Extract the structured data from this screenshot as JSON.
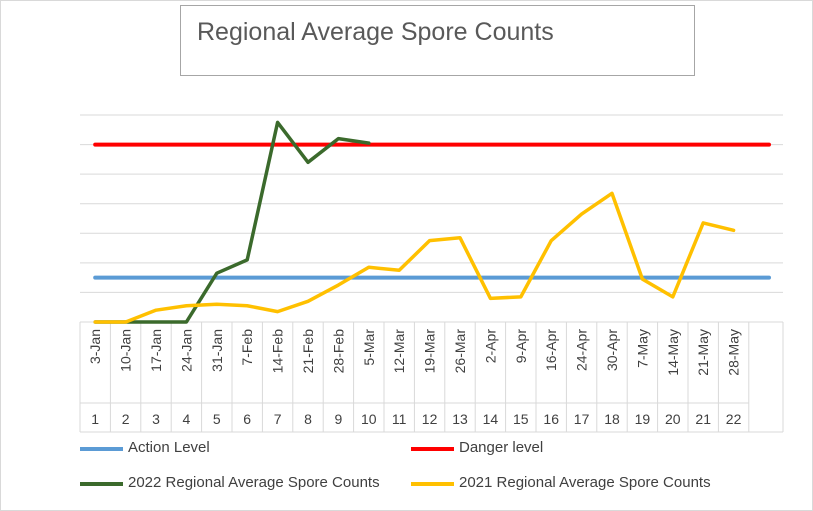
{
  "chart_data": {
    "type": "line",
    "title": "Regional Average Spore Counts",
    "xlabel": "",
    "ylabel": "",
    "grid": true,
    "legend_position": "bottom",
    "x_index": [
      "1",
      "2",
      "3",
      "4",
      "5",
      "6",
      "7",
      "8",
      "9",
      "10",
      "11",
      "12",
      "13",
      "14",
      "15",
      "16",
      "17",
      "18",
      "19",
      "20",
      "21",
      "22"
    ],
    "x_dates": [
      "3-Jan",
      "10-Jan",
      "17-Jan",
      "24-Jan",
      "31-Jan",
      "7-Feb",
      "14-Feb",
      "21-Feb",
      "28-Feb",
      "5-Mar",
      "12-Mar",
      "19-Mar",
      "26-Mar",
      "2-Apr",
      "9-Apr",
      "16-Apr",
      "24-Apr",
      "30-Apr",
      "7-May",
      "14-May",
      "21-May",
      "28-May"
    ],
    "ylim": [
      0,
      7
    ],
    "series": [
      {
        "name": "Action Level",
        "color": "#5b9bd5",
        "values": [
          1.5,
          1.5,
          1.5,
          1.5,
          1.5,
          1.5,
          1.5,
          1.5,
          1.5,
          1.5,
          1.5,
          1.5,
          1.5,
          1.5,
          1.5,
          1.5,
          1.5,
          1.5,
          1.5,
          1.5,
          1.5,
          1.5
        ]
      },
      {
        "name": "Danger level",
        "color": "#ff0000",
        "values": [
          6,
          6,
          6,
          6,
          6,
          6,
          6,
          6,
          6,
          6,
          6,
          6,
          6,
          6,
          6,
          6,
          6,
          6,
          6,
          6,
          6,
          6
        ]
      },
      {
        "name": "2022 Regional Average Spore Counts",
        "color": "#3b6a2c",
        "values": [
          0,
          0,
          0,
          0,
          1.65,
          2.1,
          6.75,
          5.4,
          6.2,
          6.05,
          null,
          null,
          null,
          null,
          null,
          null,
          null,
          null,
          null,
          null,
          null,
          null
        ]
      },
      {
        "name": "2021 Regional Average Spore Counts",
        "color": "#ffc000",
        "values": [
          0,
          0,
          0.4,
          0.55,
          0.6,
          0.55,
          0.35,
          0.7,
          1.25,
          1.85,
          1.75,
          2.75,
          2.85,
          0.8,
          0.85,
          2.75,
          3.65,
          4.35,
          1.45,
          0.85,
          3.35,
          3.1
        ]
      }
    ]
  }
}
